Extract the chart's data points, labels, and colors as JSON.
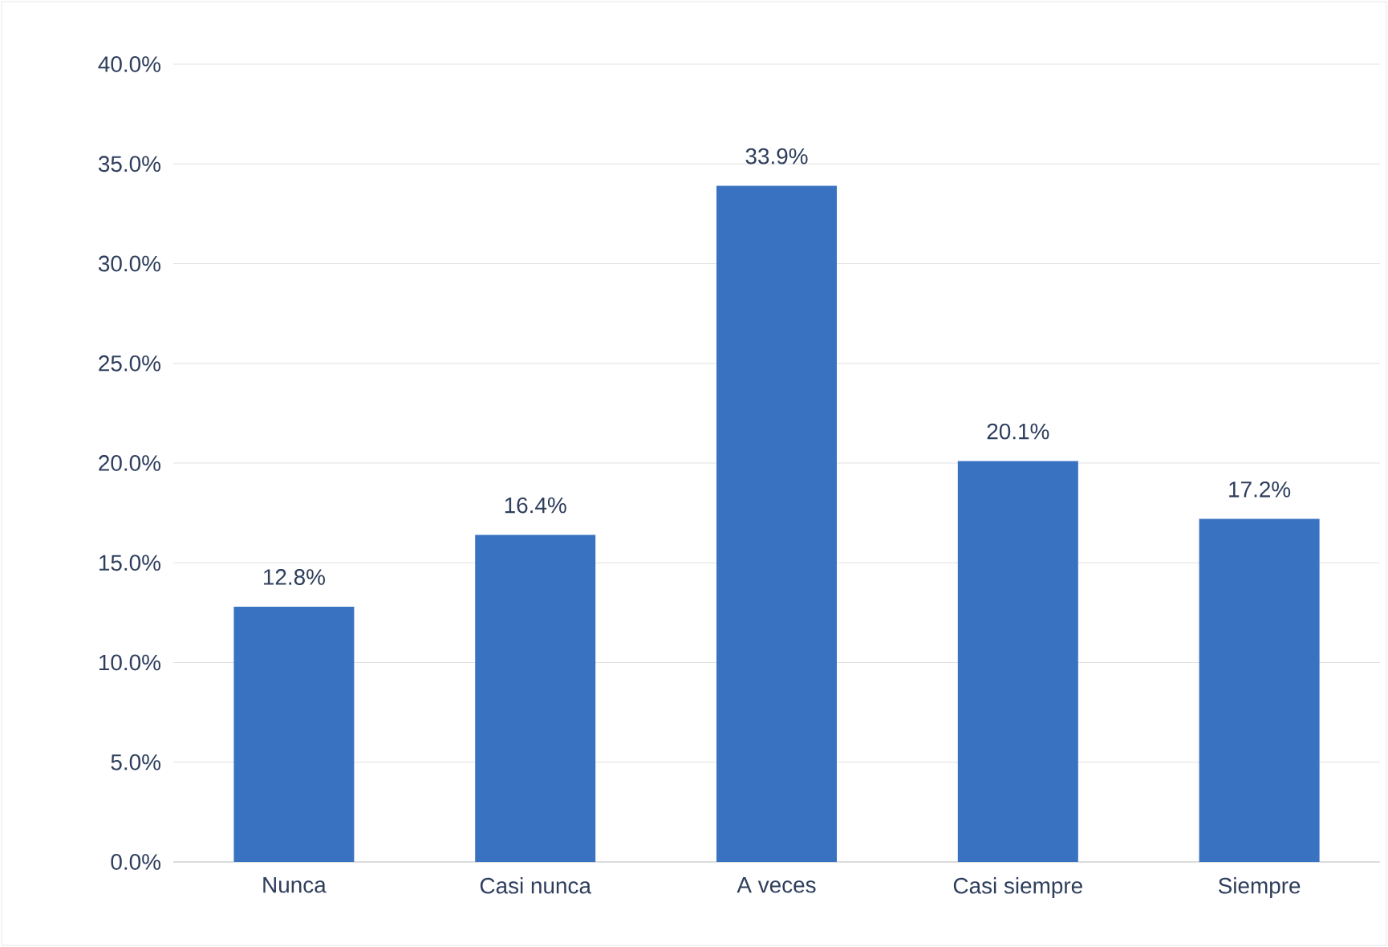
{
  "chart_data": {
    "type": "bar",
    "categories": [
      "Nunca",
      "Casi nunca",
      "A veces",
      "Casi siempre",
      "Siempre"
    ],
    "values": [
      12.8,
      16.4,
      33.9,
      20.1,
      17.2
    ],
    "value_labels": [
      "12.8%",
      "16.4%",
      "33.9%",
      "20.1%",
      "17.2%"
    ],
    "color": "#3a72c2",
    "ylim": [
      0,
      40
    ],
    "yticks": [
      {
        "value": 0,
        "label": "0.0%"
      },
      {
        "value": 5,
        "label": "5.0%"
      },
      {
        "value": 10,
        "label": "10.0%"
      },
      {
        "value": 15,
        "label": "15.0%"
      },
      {
        "value": 20,
        "label": "20.0%"
      },
      {
        "value": 25,
        "label": "25.0%"
      },
      {
        "value": 30,
        "label": "30.0%"
      },
      {
        "value": 35,
        "label": "35.0%"
      },
      {
        "value": 40,
        "label": "40.0%"
      }
    ],
    "grid": "y"
  }
}
